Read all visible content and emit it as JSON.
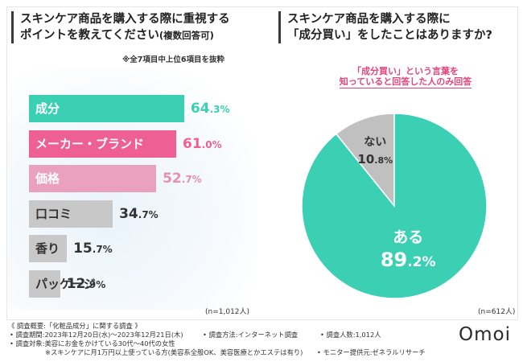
{
  "left_panel": {
    "title_line1": "スキンケア商品を購入する際に重視する",
    "title_line2": "ポイントを教えてください",
    "title_suffix": "(複数回答可)",
    "note": "※全7項目中上位6項目を抜粋",
    "n_label": "(n=1,012人)"
  },
  "right_panel": {
    "title_line1": "スキンケア商品を購入する際に",
    "title_line2": "「成分買い」をしたことはありますか?",
    "callout_line1": "「成分買い」という言葉を",
    "callout_line2": "知っていると回答した人のみ回答",
    "n_label": "(n=612人)"
  },
  "chart_data": [
    {
      "type": "bar",
      "orientation": "horizontal",
      "title": "スキンケア商品を購入する際に重視するポイントを教えてください(複数回答可)",
      "categories": [
        "成分",
        "メーカー・ブランド",
        "価格",
        "口コミ",
        "香り",
        "パッケージ"
      ],
      "values": [
        64.3,
        61.0,
        52.7,
        34.7,
        15.7,
        12.9
      ],
      "value_labels": [
        [
          "64",
          ".3%"
        ],
        [
          "61",
          ".0%"
        ],
        [
          "52",
          ".7%"
        ],
        [
          "34",
          ".7%"
        ],
        [
          "15",
          ".7%"
        ],
        [
          "12",
          ".9%"
        ]
      ],
      "unit": "%",
      "xlim": [
        0,
        100
      ],
      "colors": [
        "#3bcfb4",
        "#ee5f93",
        "#eaa0bf",
        "#c8c8c8",
        "#c8c8c8",
        "#c8c8c8"
      ],
      "value_colors": [
        "#3bcfb4",
        "#ee5f93",
        "#e58fb2",
        "#333333",
        "#333333",
        "#333333"
      ],
      "label_colors": [
        "#ffffff",
        "#ffffff",
        "#ffffff",
        "#333333",
        "#333333",
        "#333333"
      ]
    },
    {
      "type": "pie",
      "title": "スキンケア商品を購入する際に「成分買い」をしたことはありますか?",
      "labels": [
        "ある",
        "ない"
      ],
      "values": [
        89.2,
        10.8
      ],
      "value_labels": [
        [
          "89",
          ".2%"
        ],
        [
          "10",
          ".8%"
        ]
      ],
      "colors": [
        "#3bcfb4",
        "#c0c0c0"
      ]
    }
  ],
  "footer": {
    "line1": "《 調査概要:「化粧品成分」に関する調査 》",
    "period": "• 調査期間:2023年12月20日(水)〜2023年12月21日(木)",
    "method": "• 調査方法:インターネット調査",
    "respondents": "• 調査人数:1,012人",
    "target": "• 調査対象:美容にお金をかけている30代〜40代の女性",
    "target_note": "※スキンケアに月1万円以上使っている方(美容系全般OK、美容医療とかエステは有り)",
    "provider": "• モニター提供元:ゼネラルリサーチ",
    "brand": "Omoi"
  }
}
